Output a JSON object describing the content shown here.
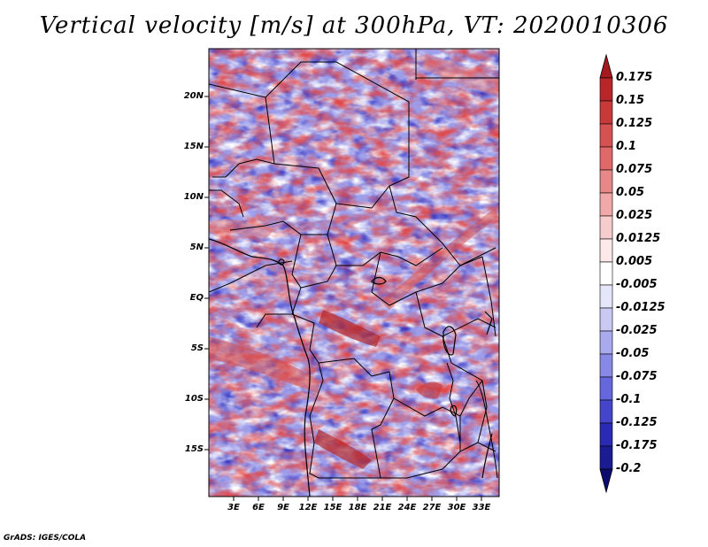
{
  "title": "Vertical velocity [m/s] at 300hPa, VT: 2020010306",
  "footer": "GrADS: IGES/COLA",
  "map": {
    "lat_labels": [
      "20N",
      "15N",
      "10N",
      "5N",
      "EQ",
      "5S",
      "10S",
      "15S"
    ],
    "lon_labels": [
      "3E",
      "6E",
      "9E",
      "12E",
      "15E",
      "18E",
      "21E",
      "24E",
      "27E",
      "30E",
      "33E"
    ],
    "lat_range": [
      -20,
      24
    ],
    "lon_range": [
      0,
      35
    ]
  },
  "colorbar": {
    "labels": [
      "0.175",
      "0.15",
      "0.125",
      "0.1",
      "0.075",
      "0.05",
      "0.025",
      "0.0125",
      "0.005",
      "-0.005",
      "-0.0125",
      "-0.025",
      "-0.05",
      "-0.075",
      "-0.1",
      "-0.125",
      "-0.175",
      "-0.2"
    ],
    "colors": [
      "#a51a1f",
      "#b8262a",
      "#c83a3a",
      "#d65252",
      "#e06868",
      "#e88787",
      "#f0a8a8",
      "#f7cccc",
      "#fde9e9",
      "#ffffff",
      "#e6e6fb",
      "#c9c9f4",
      "#a9a9ee",
      "#8888e6",
      "#6666dd",
      "#4545cc",
      "#2a2ab4",
      "#1b1b94",
      "#0c0c6e"
    ]
  }
}
